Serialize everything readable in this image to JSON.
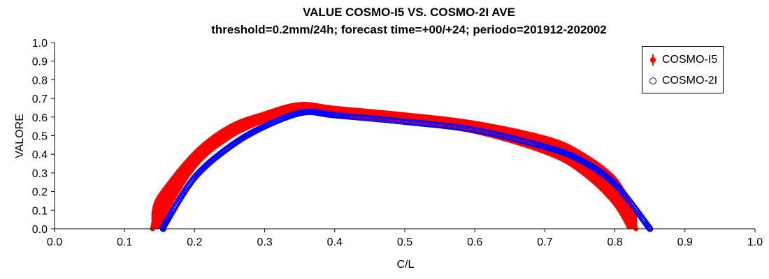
{
  "chart_data": {
    "type": "line",
    "title": "VALUE COSMO-I5 VS. COSMO-2I AVE",
    "subtitle": "threshold=0.2mm/24h; forecast time=+00/+24; periodo=201912-202002",
    "xlabel": "C/L",
    "ylabel": "VALORE",
    "xlim": [
      0.0,
      1.0
    ],
    "ylim": [
      0.0,
      1.0
    ],
    "x_ticks": [
      "0.0",
      "0.1",
      "0.2",
      "0.3",
      "0.4",
      "0.5",
      "0.6",
      "0.7",
      "0.8",
      "0.9",
      "1.0"
    ],
    "y_ticks": [
      "0.0",
      "0.1",
      "0.2",
      "0.3",
      "0.4",
      "0.5",
      "0.6",
      "0.7",
      "0.8",
      "0.9",
      "1.0"
    ],
    "grid": false,
    "legend_position": "top-right",
    "series": [
      {
        "name": "COSMO-I5",
        "color": "#ff0000",
        "marker": "filled-circle-with-errorbar",
        "x": [
          0.14,
          0.15,
          0.2,
          0.25,
          0.3,
          0.35,
          0.4,
          0.5,
          0.6,
          0.7,
          0.75,
          0.8,
          0.83
        ],
        "y": [
          0.0,
          0.1,
          0.37,
          0.52,
          0.6,
          0.655,
          0.63,
          0.595,
          0.545,
          0.45,
          0.36,
          0.2,
          0.0
        ],
        "err": [
          0.09,
          0.09,
          0.05,
          0.04,
          0.03,
          0.025,
          0.03,
          0.03,
          0.035,
          0.05,
          0.06,
          0.08,
          0.09
        ]
      },
      {
        "name": "COSMO-2I",
        "color": "#0000ff",
        "marker": "open-circle",
        "x": [
          0.155,
          0.16,
          0.2,
          0.25,
          0.3,
          0.355,
          0.4,
          0.5,
          0.6,
          0.7,
          0.75,
          0.8,
          0.85
        ],
        "y": [
          0.0,
          0.04,
          0.275,
          0.44,
          0.55,
          0.625,
          0.61,
          0.575,
          0.53,
          0.44,
          0.37,
          0.24,
          0.0
        ]
      }
    ]
  }
}
